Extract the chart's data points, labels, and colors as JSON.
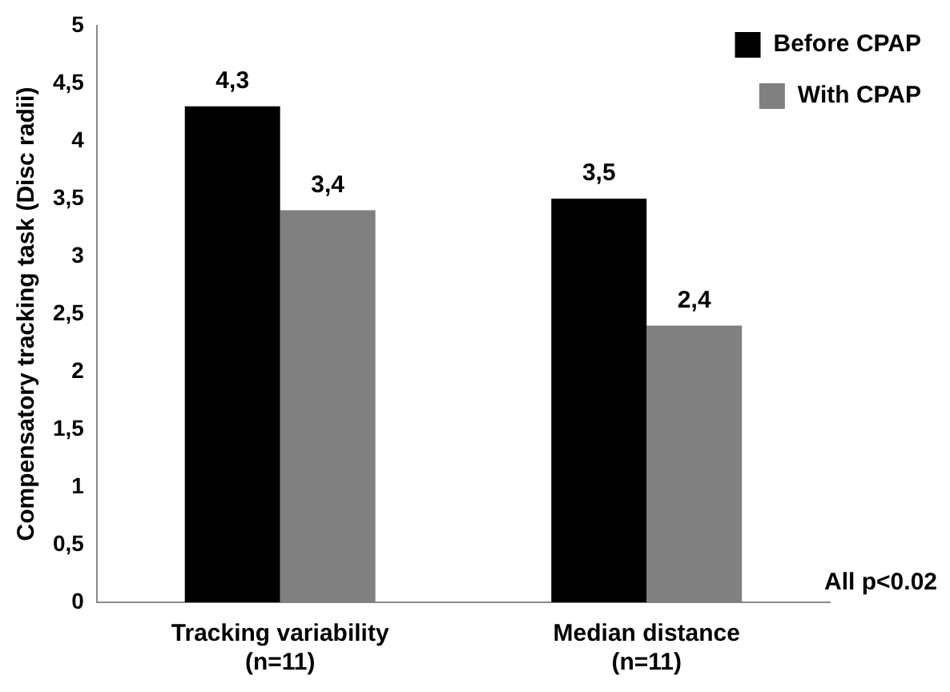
{
  "chart_data": {
    "type": "bar",
    "ylabel": "Compensatory tracking task (Disc radii)",
    "categories": [
      "Tracking variability\n(n=11)",
      "Median distance\n(n=11)"
    ],
    "series": [
      {
        "name": "Before CPAP",
        "color": "#000000",
        "values": [
          4.3,
          3.5
        ],
        "value_labels": [
          "4,3",
          "3,5"
        ]
      },
      {
        "name": "With CPAP",
        "color": "#808080",
        "values": [
          3.4,
          2.4
        ],
        "value_labels": [
          "3,4",
          "2,4"
        ]
      }
    ],
    "ylim": [
      0,
      5
    ],
    "yticks": [
      0,
      {
        "value": 0.5,
        "label": "0,5"
      },
      1,
      {
        "value": 1.5,
        "label": "1,5"
      },
      2,
      {
        "value": 2.5,
        "label": "2,5"
      },
      3,
      {
        "value": 3.5,
        "label": "3,5"
      },
      4,
      {
        "value": 4.5,
        "label": "4,5"
      },
      5
    ],
    "grid": false,
    "legend": "top right",
    "annotations": [
      "All p<0.02"
    ]
  }
}
